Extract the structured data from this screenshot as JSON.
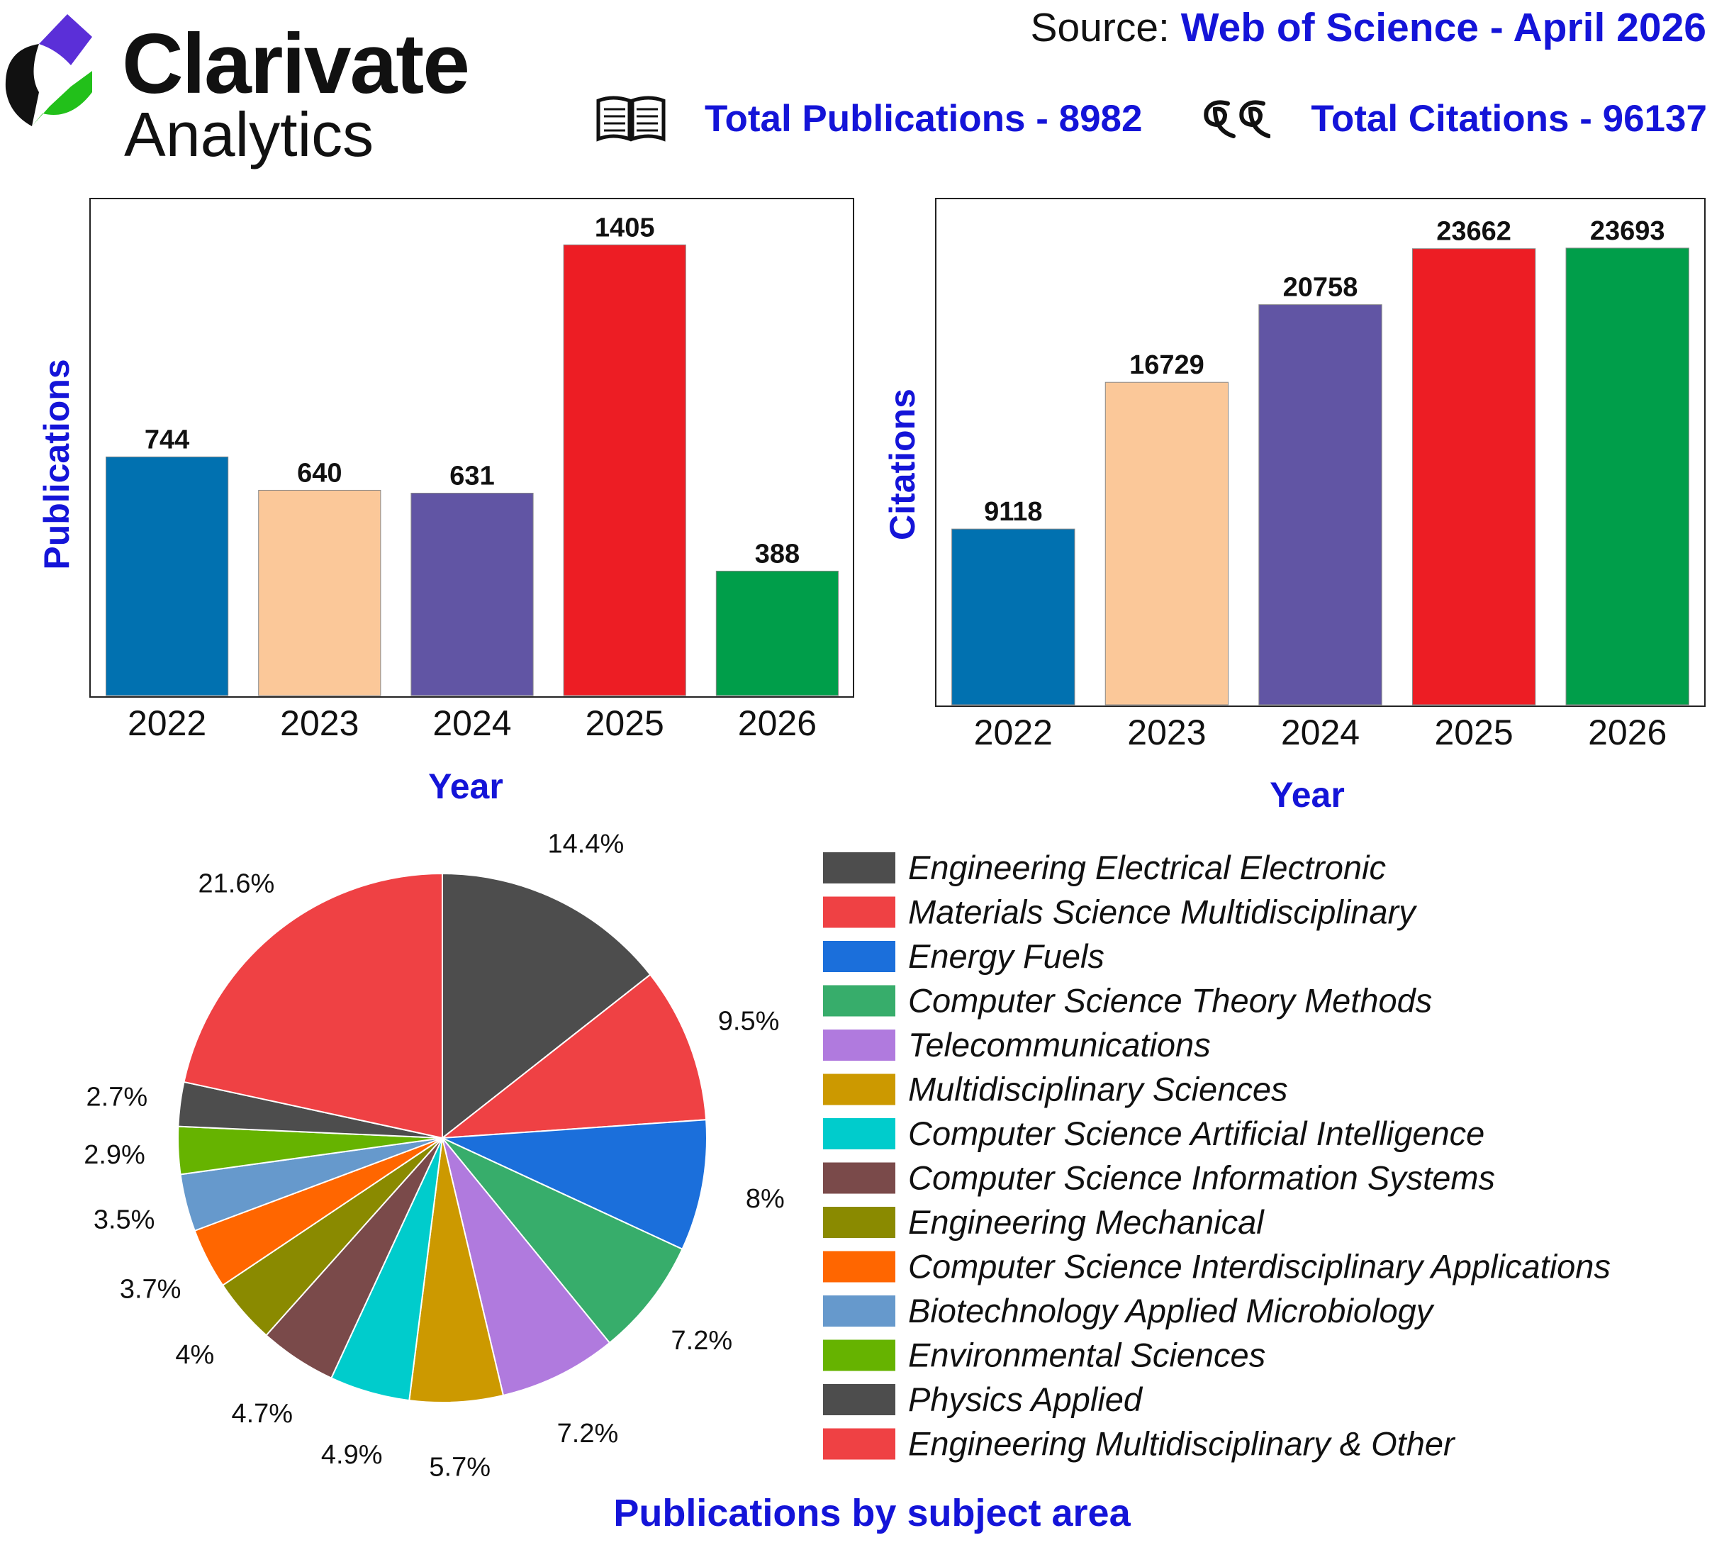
{
  "header": {
    "brand_line1": "Clarivate",
    "brand_line2": "Analytics",
    "source_label": "Source:",
    "source_value": "Web of Science - April 2026",
    "total_publications": "Total Publications - 8982",
    "total_citations": "Total Citations - 96137",
    "publications_icon": "open-book-icon",
    "citations_icon": "quote-marks-icon",
    "logo_colors": [
      "#5b2fd8",
      "#22c01a",
      "#111111"
    ]
  },
  "chart_data": [
    {
      "type": "bar",
      "categories": [
        "2022",
        "2023",
        "2024",
        "2025",
        "2026"
      ],
      "values": [
        744,
        640,
        631,
        1405,
        388
      ],
      "colors": [
        "#0171b0",
        "#fbc899",
        "#6155a4",
        "#ed1d24",
        "#009e4a"
      ],
      "xlabel": "Year",
      "ylabel": "Publications",
      "ylim": [
        0,
        1545
      ],
      "data_labels": true,
      "grid": false,
      "legend": "none"
    },
    {
      "type": "bar",
      "categories": [
        "2022",
        "2023",
        "2024",
        "2025",
        "2026"
      ],
      "values": [
        9118,
        16729,
        20758,
        23662,
        23693
      ],
      "colors": [
        "#0171b0",
        "#fbc899",
        "#6155a4",
        "#ed1d24",
        "#009e4a"
      ],
      "xlabel": "Year",
      "ylabel": "Citations",
      "ylim": [
        0,
        26190
      ],
      "data_labels": true,
      "grid": false,
      "legend": "none"
    },
    {
      "type": "pie",
      "title": "Publications by subject area",
      "legend": "right",
      "categories": [
        "Engineering Electrical Electronic",
        "Materials Science Multidisciplinary",
        "Energy Fuels",
        "Computer Science Theory Methods",
        "Telecommunications",
        "Multidisciplinary Sciences",
        "Computer Science Artificial Intelligence",
        "Computer Science Information Systems",
        "Engineering Mechanical",
        "Computer Science Interdisciplinary Applications",
        "Biotechnology Applied Microbiology",
        "Environmental Sciences",
        "Physics Applied",
        "Engineering Multidisciplinary & Other"
      ],
      "values": [
        14.4,
        9.5,
        8,
        7.2,
        7.2,
        5.7,
        4.9,
        4.7,
        4,
        3.7,
        3.5,
        2.9,
        2.7,
        21.6
      ],
      "labels": [
        "14.4%",
        "9.5%",
        "8%",
        "7.2%",
        "7.2%",
        "5.7%",
        "4.9%",
        "4.7%",
        "4%",
        "3.7%",
        "3.5%",
        "2.9%",
        "2.7%",
        "21.6%"
      ],
      "colors": [
        "#4d4d4d",
        "#ef4144",
        "#1b6fdb",
        "#37ad6b",
        "#b07ade",
        "#cc9900",
        "#00cccc",
        "#7a4a4a",
        "#8a8a00",
        "#ff6600",
        "#6699cc",
        "#66b300",
        "#4d4d4d",
        "#ef4144"
      ]
    }
  ]
}
